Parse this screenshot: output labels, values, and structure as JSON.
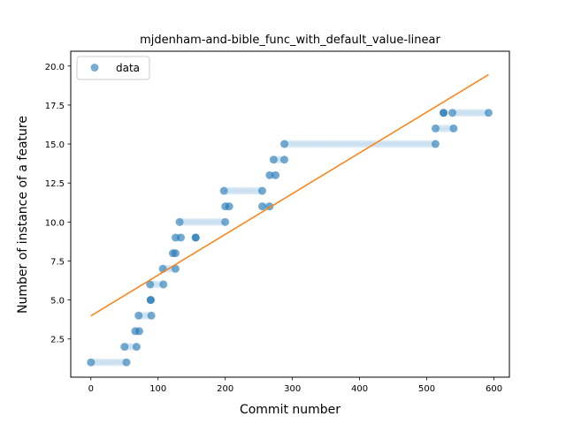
{
  "chart_data": {
    "type": "scatter",
    "title": "mjdenham-and-bible_func_with_default_value-linear",
    "xlabel": "Commit number",
    "ylabel": "Number of instance of a feature",
    "xlim": [
      -30,
      623
    ],
    "ylim": [
      0.05,
      20.95
    ],
    "xticks": [
      0,
      100,
      200,
      300,
      400,
      500,
      600
    ],
    "yticks": [
      2.5,
      5.0,
      7.5,
      10.0,
      12.5,
      15.0,
      17.5,
      20.0
    ],
    "ytick_labels": [
      "2.5",
      "5.0",
      "7.5",
      "10.0",
      "12.5",
      "15.0",
      "17.5",
      "20.0"
    ],
    "grid": false,
    "legend_position": "upper-left",
    "series": [
      {
        "name": "data",
        "kind": "scatter",
        "color": "#1f77b4",
        "alpha": 0.6,
        "segments": [
          {
            "x_start": 0,
            "x_end": 53,
            "y": 1
          },
          {
            "x_start": 50,
            "x_end": 68,
            "y": 2
          },
          {
            "x_start": 66,
            "x_end": 72,
            "y": 3
          },
          {
            "x_start": 71,
            "x_end": 90,
            "y": 4
          },
          {
            "x_start": 89,
            "x_end": 89,
            "y": 5
          },
          {
            "x_start": 88,
            "x_end": 108,
            "y": 6
          },
          {
            "x_start": 107,
            "x_end": 126,
            "y": 7
          },
          {
            "x_start": 122,
            "x_end": 126,
            "y": 8
          },
          {
            "x_start": 126,
            "x_end": 134,
            "y": 9
          },
          {
            "x_start": 156,
            "x_end": 156,
            "y": 9
          },
          {
            "x_start": 132,
            "x_end": 200,
            "y": 10
          },
          {
            "x_start": 200,
            "x_end": 206,
            "y": 11
          },
          {
            "x_start": 198,
            "x_end": 255,
            "y": 12
          },
          {
            "x_start": 255,
            "x_end": 266,
            "y": 11
          },
          {
            "x_start": 266,
            "x_end": 275,
            "y": 13
          },
          {
            "x_start": 272,
            "x_end": 288,
            "y": 14
          },
          {
            "x_start": 288,
            "x_end": 513,
            "y": 15
          },
          {
            "x_start": 513,
            "x_end": 540,
            "y": 16
          },
          {
            "x_start": 525,
            "x_end": 525,
            "y": 17
          },
          {
            "x_start": 538,
            "x_end": 592,
            "y": 17
          }
        ]
      },
      {
        "name": "",
        "kind": "line",
        "color": "#ff7f0e",
        "x": [
          0,
          592
        ],
        "y": [
          3.98,
          19.45
        ]
      }
    ]
  }
}
